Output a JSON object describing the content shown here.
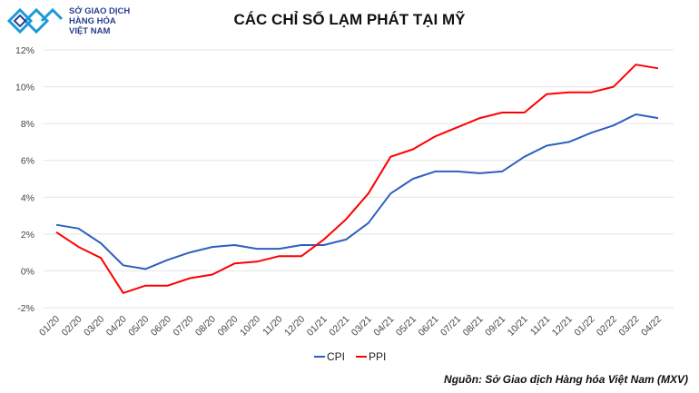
{
  "logo": {
    "lines": [
      "SỞ GIAO DỊCH",
      "HÀNG HÓA",
      "VIỆT NAM"
    ]
  },
  "source": "Nguồn: Sở Giao dịch Hàng hóa Việt Nam (MXV)",
  "chart_data": {
    "type": "line",
    "title": "CÁC CHỈ SỐ LẠM PHÁT TẠI MỸ",
    "xlabel": "",
    "ylabel": "",
    "ylim": [
      -2,
      12
    ],
    "yticks": [
      -2,
      0,
      2,
      4,
      6,
      8,
      10,
      12
    ],
    "ytick_format": "%",
    "grid": true,
    "legend": "bottom",
    "categories": [
      "01/20",
      "02/20",
      "03/20",
      "04/20",
      "05/20",
      "06/20",
      "07/20",
      "08/20",
      "09/20",
      "10/20",
      "11/20",
      "12/20",
      "01/21",
      "02/21",
      "03/21",
      "04/21",
      "05/21",
      "06/21",
      "07/21",
      "08/21",
      "09/21",
      "10/21",
      "11/21",
      "12/21",
      "01/22",
      "02/22",
      "03/22",
      "04/22"
    ],
    "series": [
      {
        "name": "CPI",
        "color": "#2e5fbf",
        "values": [
          2.5,
          2.3,
          1.5,
          0.3,
          0.1,
          0.6,
          1.0,
          1.3,
          1.4,
          1.2,
          1.2,
          1.4,
          1.4,
          1.7,
          2.6,
          4.2,
          5.0,
          5.4,
          5.4,
          5.3,
          5.4,
          6.2,
          6.8,
          7.0,
          7.5,
          7.9,
          8.5,
          8.3
        ]
      },
      {
        "name": "PPI",
        "color": "#ff0000",
        "values": [
          2.1,
          1.3,
          0.7,
          -1.2,
          -0.8,
          -0.8,
          -0.4,
          -0.2,
          0.4,
          0.5,
          0.8,
          0.8,
          1.7,
          2.8,
          4.2,
          6.2,
          6.6,
          7.3,
          7.8,
          8.3,
          8.6,
          8.6,
          9.6,
          9.7,
          9.7,
          10.0,
          11.2,
          11.0
        ]
      }
    ]
  }
}
